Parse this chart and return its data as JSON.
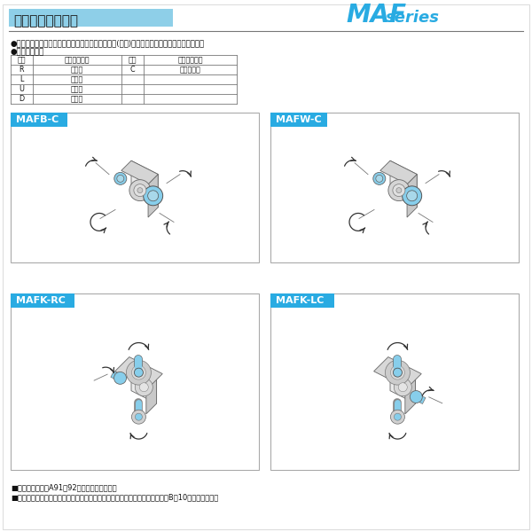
{
  "title": "軸配置と回転方向",
  "title_bg": "#8ECFE8",
  "brand_maf": "MAF",
  "brand_series": "series",
  "brand_color": "#29ABE2",
  "bg_color": "#FFFFFF",
  "text1": "●軸配置は入力軸またはモータを手前にして出力軸(青色)の出ている方向で決定して下さい。",
  "text2": "●軸配置の記号",
  "table_headers": [
    "記号",
    "出力軸の方向",
    "記号",
    "出力軸の方向"
  ],
  "table_rows": [
    [
      "R",
      "右　側",
      "C",
      "出力軸退避"
    ],
    [
      "L",
      "左　側",
      "",
      ""
    ],
    [
      "U",
      "上　側",
      "",
      ""
    ],
    [
      "D",
      "下　側",
      "",
      ""
    ]
  ],
  "box1_label": "MAFB-C",
  "box2_label": "MAFW-C",
  "box3_label": "MAFK-RC",
  "box4_label": "MAFK-LC",
  "box_label_bg": "#29ABE2",
  "box_label_color": "#FFFFFF",
  "box_border": "#AAAAAA",
  "footer1": "■軸配置の詳細はA91・92を参照して下さい。",
  "footer2": "■特殊な取付状態については、当社へお問い合わせ下さい。なお、参考としてB－10をご覧下さい。",
  "line_color": "#333333",
  "body_face": "#E8E8E8",
  "body_top": "#D0D0D0",
  "body_side": "#C0C0C0",
  "shaft_color": "#87CEEB",
  "gear_face": "#DDDDDD"
}
